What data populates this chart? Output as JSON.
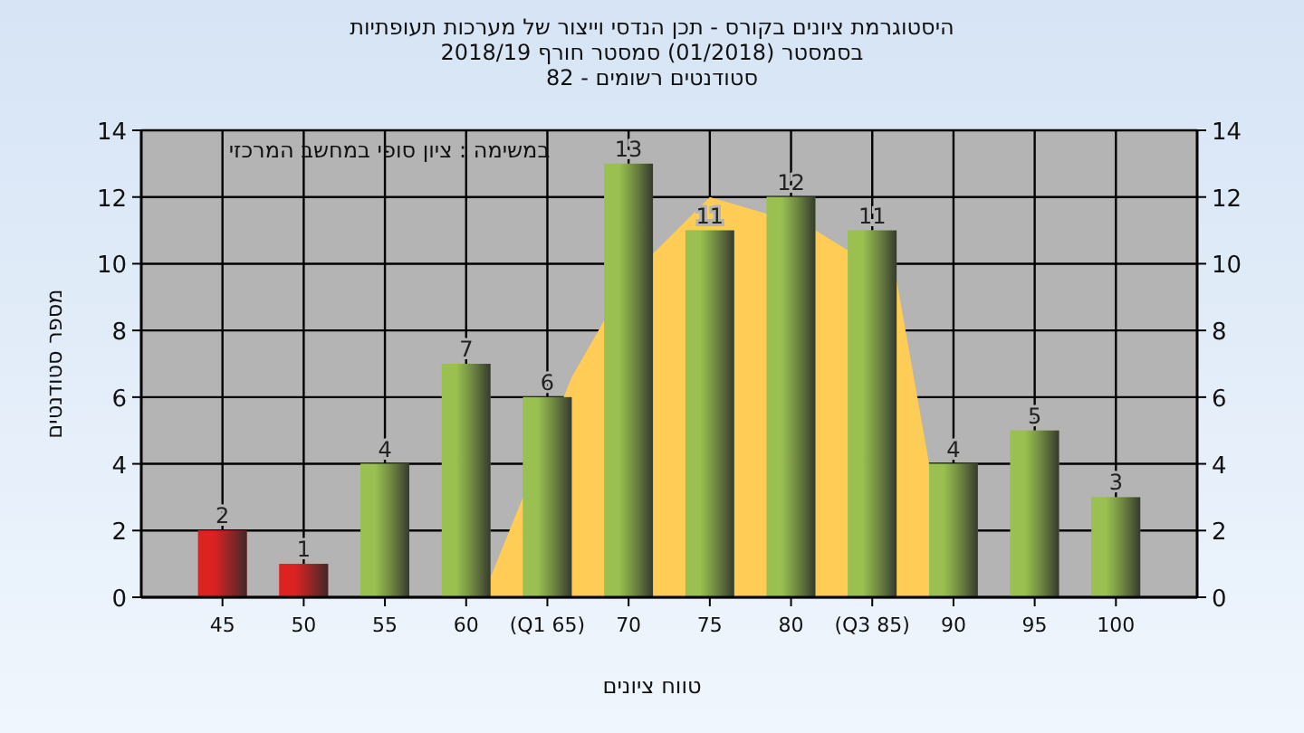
{
  "chart_data": {
    "type": "bar",
    "title": "היסטוגרמת ציונים בקורס - תכן הנדסי וייצור של מערכות תעופתיות",
    "subtitle": "בסמסטר  (01/2018)  סמסטר חורף 2018/19\nסטודנטים רשומים - 82",
    "xlabel": "טווח ציונים",
    "ylabel": "מספר סטודנטים",
    "annotations": [
      "במשימה : ציון סופי במחשב המרכזי"
    ],
    "x": [
      45,
      50,
      55,
      60,
      65,
      70,
      75,
      80,
      85,
      90,
      95,
      100
    ],
    "series": [
      {
        "type": "area",
        "color": "#ffcc55",
        "x": [
          61,
          66.5,
          68.5,
          71.5,
          75,
          78.5,
          81.5,
          86.5,
          88.5
        ],
        "values": [
          0,
          6.6,
          8.3,
          10.3,
          12,
          11.5,
          11,
          9.5,
          4
        ]
      },
      {
        "colors": [
          "#dd2222",
          "#dd2222",
          "#99c050",
          "#99c050",
          "#99c050",
          "#99c050",
          "#99c050",
          "#99c050",
          "#99c050",
          "#99c050",
          "#99c050",
          "#99c050"
        ],
        "values": [
          2,
          1,
          4,
          7,
          6,
          13,
          11,
          12,
          11,
          4,
          5,
          3
        ],
        "value_labels": [
          "2",
          "1",
          "4",
          "7",
          "6",
          "13",
          "11",
          "12",
          "11",
          "4",
          "5",
          "3"
        ]
      }
    ],
    "xlim": [
      40,
      105
    ],
    "xticks": [
      45,
      50,
      55,
      60,
      {
        "value": 65,
        "label": "(Q1 65)"
      },
      70,
      75,
      80,
      {
        "value": 85,
        "label": "(Q3 85)"
      },
      90,
      95,
      100
    ],
    "ylim": [
      0,
      14
    ],
    "yticks": [
      0,
      2,
      4,
      6,
      8,
      10,
      12,
      14
    ],
    "y2lim": [
      0,
      14
    ],
    "y2ticks": [
      0,
      2,
      4,
      6,
      8,
      10,
      12,
      14
    ],
    "grid": true
  }
}
